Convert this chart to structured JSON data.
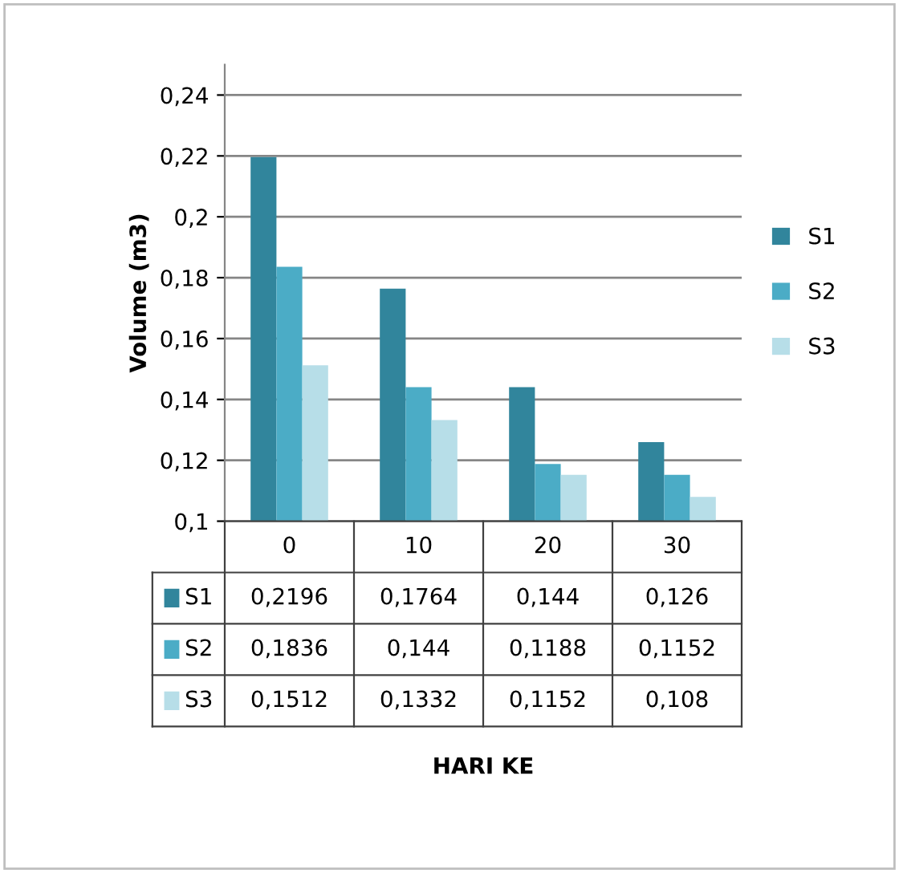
{
  "chart_data": {
    "type": "bar",
    "ylabel": "Volume (m3)",
    "annotations": [
      "HARI KE"
    ],
    "categories": [
      "0",
      "10",
      "20",
      "30"
    ],
    "series": [
      {
        "name": "S1",
        "color": "#31859c",
        "values": [
          0.2196,
          0.1764,
          0.144,
          0.126
        ],
        "value_labels": [
          "0,2196",
          "0,1764",
          "0,144",
          "0,126"
        ]
      },
      {
        "name": "S2",
        "color": "#4bacc6",
        "values": [
          0.1836,
          0.144,
          0.1188,
          0.1152
        ],
        "value_labels": [
          "0,1836",
          "0,144",
          "0,1188",
          "0,1152"
        ]
      },
      {
        "name": "S3",
        "color": "#b7dee8",
        "values": [
          0.1512,
          0.1332,
          0.1152,
          0.108
        ],
        "value_labels": [
          "0,1512",
          "0,1332",
          "0,1152",
          "0,108"
        ]
      }
    ],
    "ylim": [
      0.1,
      0.25
    ],
    "yticks": [
      {
        "value": 0.1,
        "label": "0,1"
      },
      {
        "value": 0.12,
        "label": "0,12"
      },
      {
        "value": 0.14,
        "label": "0,14"
      },
      {
        "value": 0.16,
        "label": "0,16"
      },
      {
        "value": 0.18,
        "label": "0,18"
      },
      {
        "value": 0.2,
        "label": "0,2"
      },
      {
        "value": 0.22,
        "label": "0,22"
      },
      {
        "value": 0.24,
        "label": "0,24"
      }
    ],
    "grid": "y",
    "legend": "right"
  }
}
